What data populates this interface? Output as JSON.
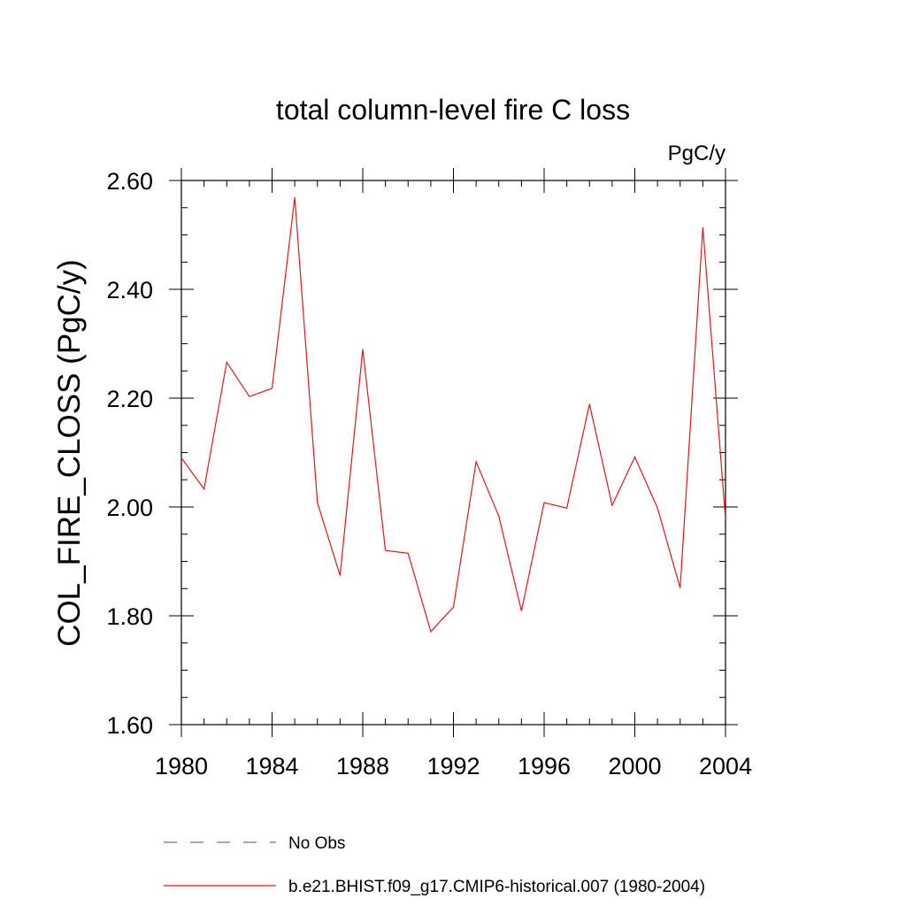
{
  "chart_data": {
    "type": "line",
    "title": "total column-level fire C loss",
    "units": "PgC/y",
    "ylabel": "COL_FIRE_CLOSS  (PgC/y)",
    "xlabel": "",
    "xlim": [
      1980,
      2004
    ],
    "ylim": [
      1.6,
      2.6
    ],
    "x_ticks": [
      1980,
      1984,
      1988,
      1992,
      1996,
      2000,
      2004
    ],
    "x_tick_labels": [
      "1980",
      "1984",
      "1988",
      "1992",
      "1996",
      "2000",
      "2004"
    ],
    "y_ticks": [
      1.6,
      1.8,
      2.0,
      2.2,
      2.4,
      2.6
    ],
    "y_tick_labels": [
      "1.60",
      "1.80",
      "2.00",
      "2.20",
      "2.40",
      "2.60"
    ],
    "x": [
      1980,
      1981,
      1982,
      1983,
      1984,
      1985,
      1986,
      1987,
      1988,
      1989,
      1990,
      1991,
      1992,
      1993,
      1994,
      1995,
      1996,
      1997,
      1998,
      1999,
      2000,
      2001,
      2002,
      2003,
      2004
    ],
    "series": [
      {
        "name": "b.e21.BHIST.f09_g17.CMIP6-historical.007 (1980-2004)",
        "color": "#e8141e",
        "line_style": "solid",
        "values": [
          2.09,
          2.033,
          2.266,
          2.203,
          2.218,
          2.569,
          2.008,
          1.874,
          2.29,
          1.92,
          1.915,
          1.771,
          1.816,
          2.083,
          1.983,
          1.809,
          2.008,
          1.998,
          2.189,
          2.003,
          2.092,
          1.998,
          1.851,
          2.514,
          1.978
        ]
      }
    ],
    "legend": {
      "placement": "bottom",
      "entries": [
        {
          "label": "No Obs",
          "color": "#7b68c8",
          "line_style": "dashed"
        },
        {
          "label": "b.e21.BHIST.f09_g17.CMIP6-historical.007 (1980-2004)",
          "color": "#e8141e",
          "line_style": "solid"
        }
      ]
    },
    "grid": false
  }
}
